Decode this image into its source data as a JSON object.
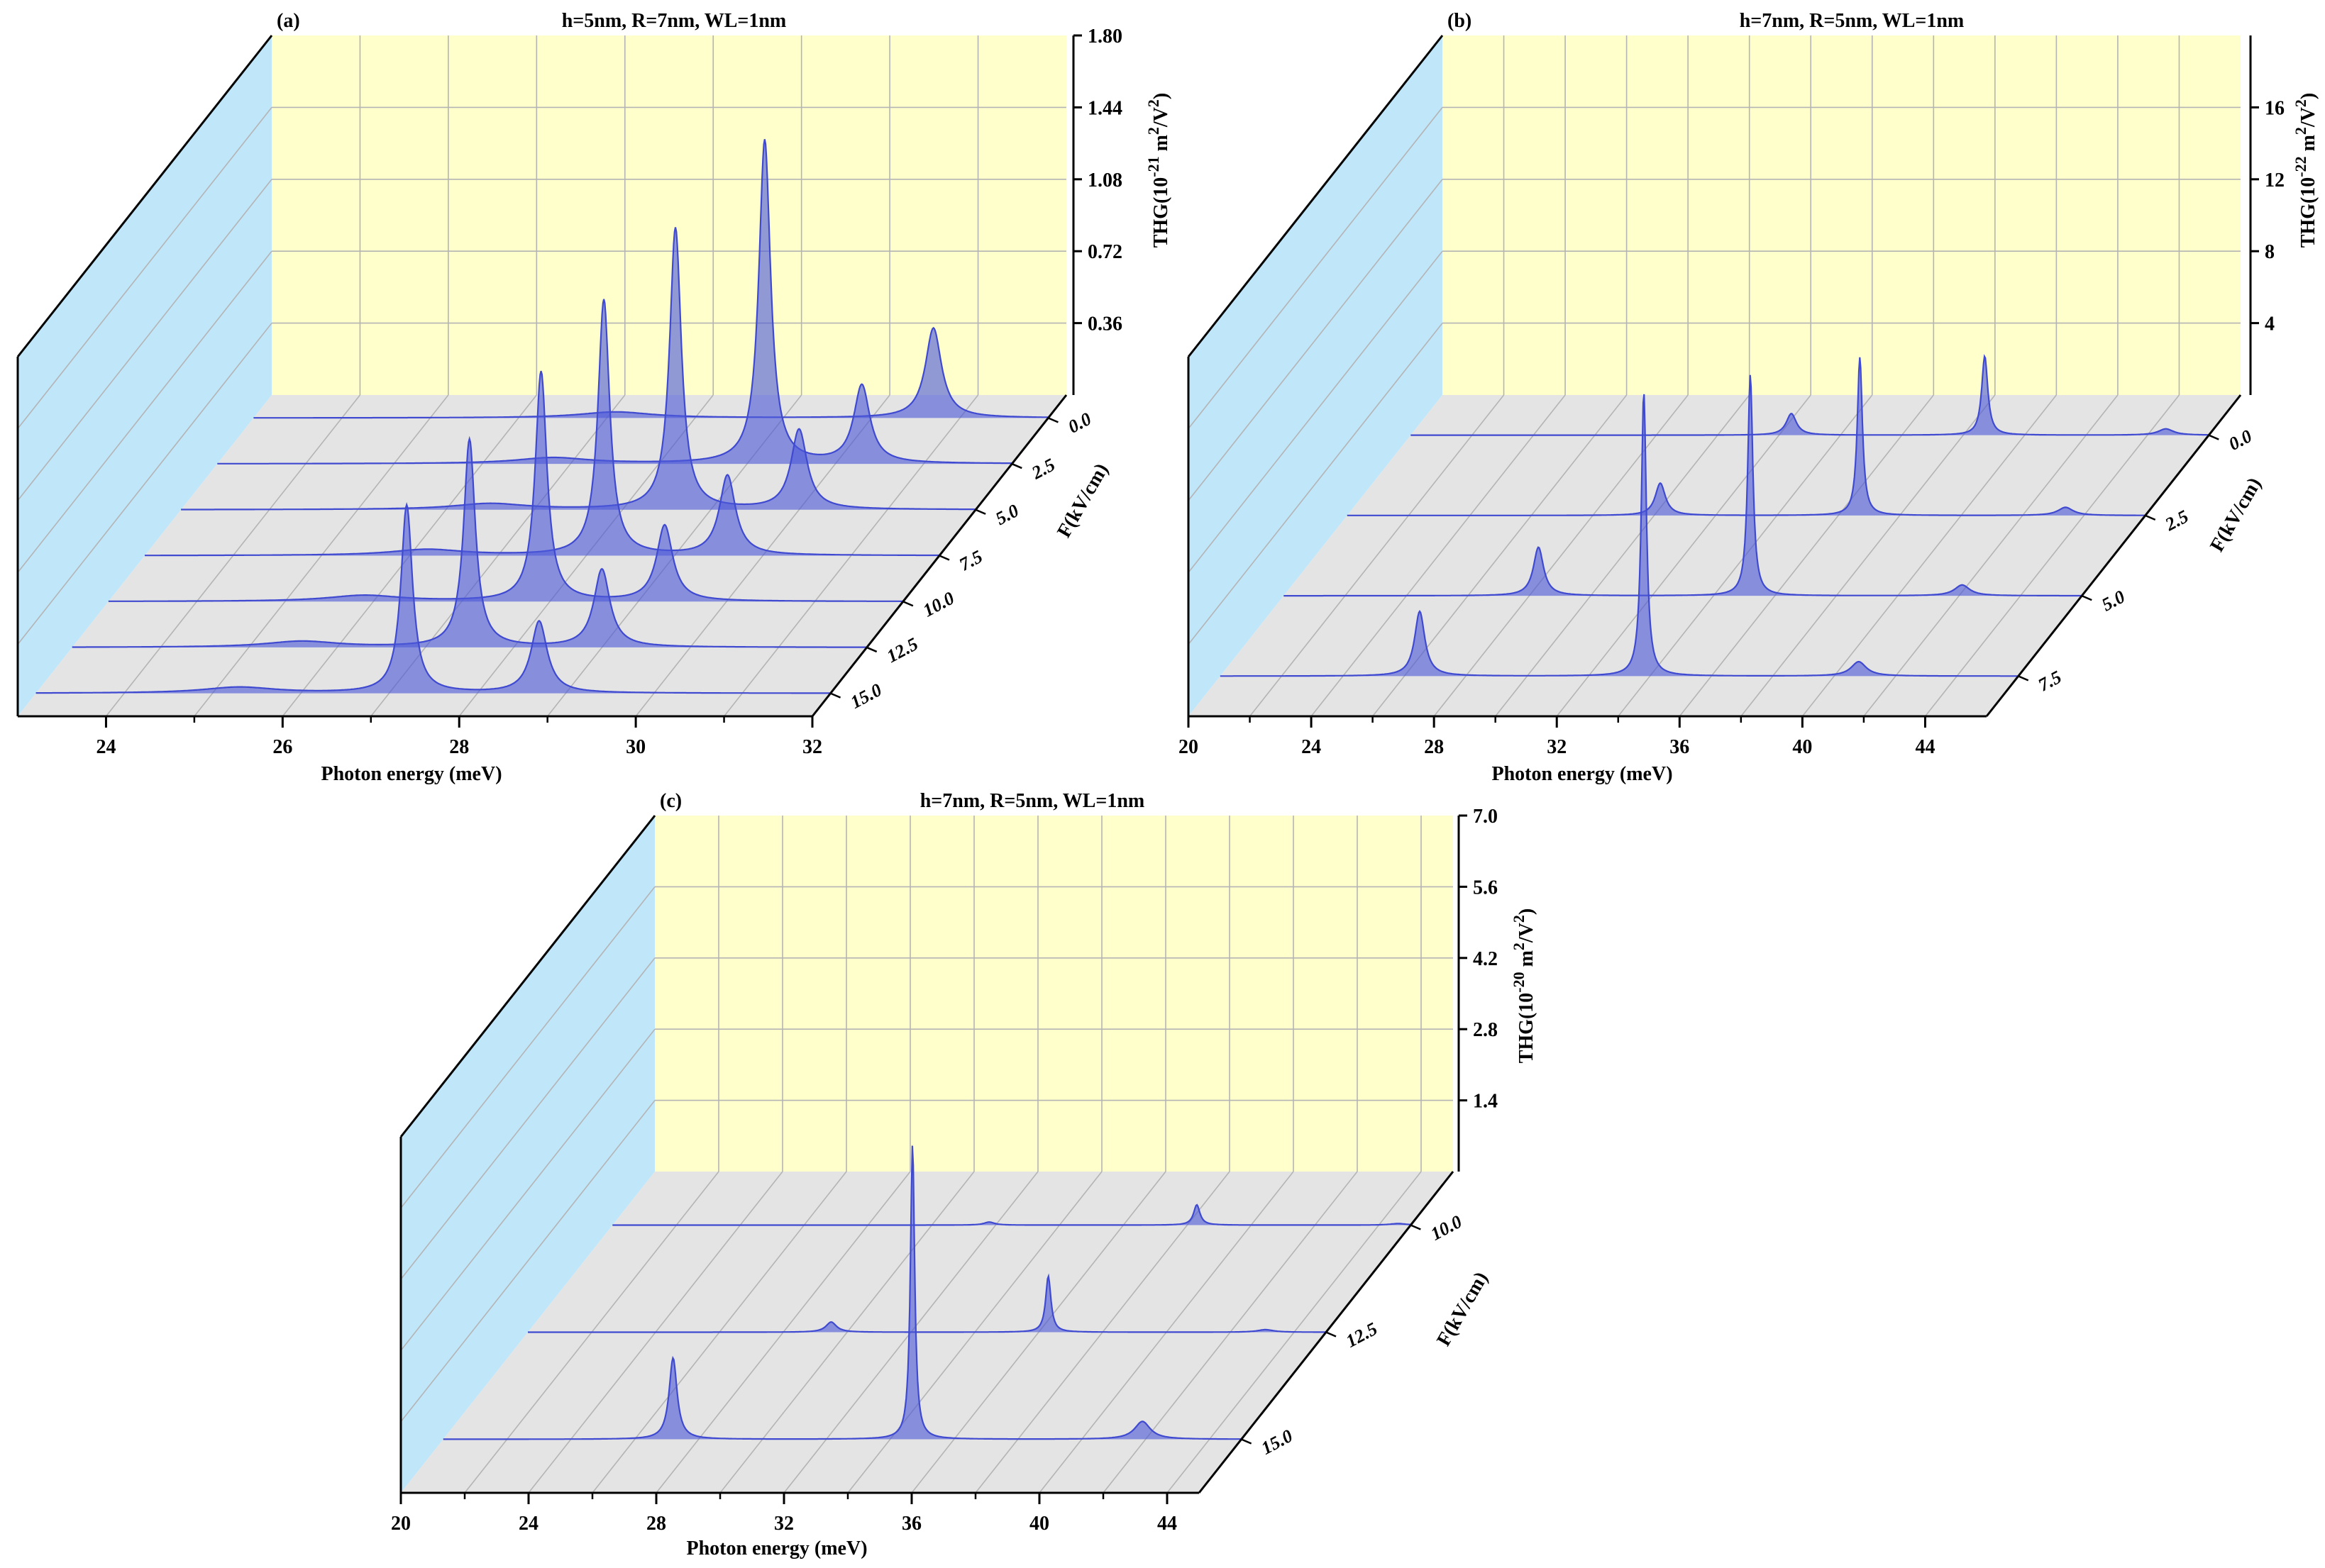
{
  "colors": {
    "back_wall": "#ffffcc",
    "side_wall": "#c0e6fa",
    "floor": "#e4e4e4",
    "grid": "#b4b4b4",
    "curve_stroke": "#3f4ad0",
    "curve_fill": "#4d5ad8",
    "axis": "#000000"
  },
  "chart_data": [
    {
      "panel_label": "(a)",
      "title": "h=5nm, R=7nm,  WL=1nm",
      "type": "area",
      "xlabel": "Photon energy (meV)",
      "ylabel": "F(kV/cm)",
      "zlabel_base": "THG(10",
      "zlabel_exp": "-21",
      "zlabel_units": "m",
      "xlim": [
        23,
        32
      ],
      "x_major_ticks": [
        24,
        26,
        28,
        30,
        32
      ],
      "x_minor_ticks": [
        25,
        27,
        29,
        31
      ],
      "zlim": [
        0,
        1.8
      ],
      "z_ticks": [
        0.36,
        0.72,
        1.08,
        1.44,
        1.8
      ],
      "z_tick_labels": [
        "0.36",
        "0.72",
        "1.08",
        "1.44",
        "1.80"
      ],
      "series": [
        {
          "name": "0.0",
          "peaks": [
            {
              "x": 27.1,
              "height": 0.03,
              "width": 0.5
            },
            {
              "x": 30.7,
              "height": 0.45,
              "width": 0.11
            }
          ]
        },
        {
          "name": "2.5",
          "peaks": [
            {
              "x": 26.8,
              "height": 0.03,
              "width": 0.5
            },
            {
              "x": 29.2,
              "height": 1.62,
              "width": 0.08
            },
            {
              "x": 30.3,
              "height": 0.39,
              "width": 0.11
            }
          ]
        },
        {
          "name": "5.0",
          "peaks": [
            {
              "x": 26.5,
              "height": 0.03,
              "width": 0.5
            },
            {
              "x": 28.6,
              "height": 1.41,
              "width": 0.08
            },
            {
              "x": 30.0,
              "height": 0.4,
              "width": 0.11
            }
          ]
        },
        {
          "name": "7.5",
          "peaks": [
            {
              "x": 26.2,
              "height": 0.03,
              "width": 0.5
            },
            {
              "x": 28.2,
              "height": 1.28,
              "width": 0.08
            },
            {
              "x": 29.6,
              "height": 0.4,
              "width": 0.11
            }
          ]
        },
        {
          "name": "10.0",
          "peaks": [
            {
              "x": 25.9,
              "height": 0.03,
              "width": 0.5
            },
            {
              "x": 27.9,
              "height": 1.15,
              "width": 0.08
            },
            {
              "x": 29.3,
              "height": 0.38,
              "width": 0.11
            }
          ]
        },
        {
          "name": "12.5",
          "peaks": [
            {
              "x": 25.6,
              "height": 0.03,
              "width": 0.5
            },
            {
              "x": 27.5,
              "height": 1.04,
              "width": 0.08
            },
            {
              "x": 29.0,
              "height": 0.39,
              "width": 0.11
            }
          ]
        },
        {
          "name": "15.0",
          "peaks": [
            {
              "x": 25.3,
              "height": 0.03,
              "width": 0.5
            },
            {
              "x": 27.2,
              "height": 0.94,
              "width": 0.08
            },
            {
              "x": 28.7,
              "height": 0.36,
              "width": 0.11
            }
          ]
        }
      ]
    },
    {
      "panel_label": "(b)",
      "title": "h=7nm, R=5nm, WL=1nm",
      "type": "area",
      "xlabel": "Photon energy (meV)",
      "ylabel": "F(kV/cm)",
      "zlabel_base": "THG(10",
      "zlabel_exp": "-22",
      "zlabel_units": "m",
      "xlim": [
        20,
        46
      ],
      "x_major_ticks": [
        20,
        24,
        28,
        32,
        36,
        40,
        44
      ],
      "x_minor_ticks": [
        22,
        26,
        30,
        34,
        38,
        42
      ],
      "zlim": [
        0,
        20
      ],
      "z_ticks": [
        4,
        8,
        12,
        16
      ],
      "z_tick_labels": [
        "4",
        "8",
        "12",
        "16"
      ],
      "series": [
        {
          "name": "0.0",
          "peaks": [
            {
              "x": 32.4,
              "height": 1.2,
              "width": 0.2
            },
            {
              "x": 38.7,
              "height": 4.4,
              "width": 0.12
            },
            {
              "x": 44.6,
              "height": 0.35,
              "width": 0.3
            }
          ]
        },
        {
          "name": "2.5",
          "peaks": [
            {
              "x": 30.2,
              "height": 1.8,
              "width": 0.2
            },
            {
              "x": 36.7,
              "height": 8.8,
              "width": 0.1
            },
            {
              "x": 43.4,
              "height": 0.45,
              "width": 0.3
            }
          ]
        },
        {
          "name": "5.0",
          "peaks": [
            {
              "x": 28.3,
              "height": 2.7,
              "width": 0.2
            },
            {
              "x": 35.2,
              "height": 12.3,
              "width": 0.1
            },
            {
              "x": 42.1,
              "height": 0.6,
              "width": 0.3
            }
          ]
        },
        {
          "name": "7.5",
          "peaks": [
            {
              "x": 26.5,
              "height": 3.6,
              "width": 0.2
            },
            {
              "x": 33.8,
              "height": 15.8,
              "width": 0.1
            },
            {
              "x": 40.8,
              "height": 0.8,
              "width": 0.3
            }
          ]
        }
      ]
    },
    {
      "panel_label": "(c)",
      "title": "h=7nm, R=5nm, WL=1nm",
      "type": "area",
      "xlabel": "Photon energy (meV)",
      "ylabel": "F(kV/cm)",
      "zlabel_base": "THG(10",
      "zlabel_exp": "-20",
      "zlabel_units": "m",
      "xlim": [
        20,
        45
      ],
      "x_major_ticks": [
        20,
        24,
        28,
        32,
        36,
        40,
        44
      ],
      "x_minor_ticks": [
        22,
        26,
        30,
        34,
        38,
        42
      ],
      "zlim": [
        0,
        7
      ],
      "z_ticks": [
        1.4,
        2.8,
        4.2,
        5.6,
        7.0
      ],
      "z_tick_labels": [
        "1.4",
        "2.8",
        "4.2",
        "5.6",
        "7.0"
      ],
      "series": [
        {
          "name": "10.0",
          "peaks": [
            {
              "x": 31.8,
              "height": 0.06,
              "width": 0.2
            },
            {
              "x": 38.3,
              "height": 0.4,
              "width": 0.12
            },
            {
              "x": 44.6,
              "height": 0.03,
              "width": 0.3
            }
          ]
        },
        {
          "name": "12.5",
          "peaks": [
            {
              "x": 29.5,
              "height": 0.2,
              "width": 0.2
            },
            {
              "x": 36.3,
              "height": 1.1,
              "width": 0.1
            },
            {
              "x": 43.1,
              "height": 0.05,
              "width": 0.3
            }
          ]
        },
        {
          "name": "15.0",
          "peaks": [
            {
              "x": 27.2,
              "height": 1.6,
              "width": 0.15
            },
            {
              "x": 34.7,
              "height": 5.8,
              "width": 0.08
            },
            {
              "x": 41.9,
              "height": 0.35,
              "width": 0.3
            }
          ]
        }
      ]
    }
  ]
}
